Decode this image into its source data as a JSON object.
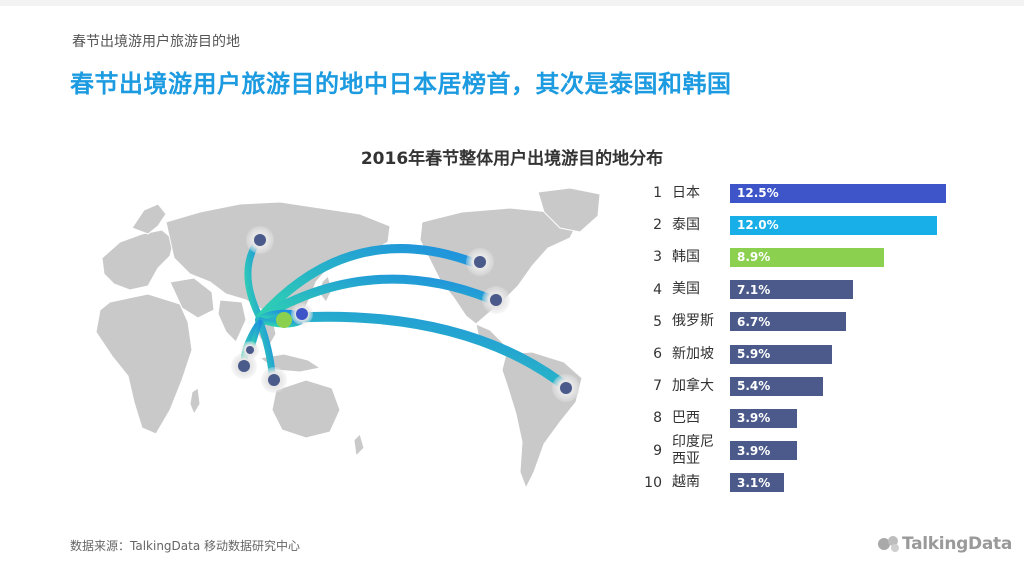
{
  "section_label": "春节出境游用户旅游目的地",
  "headline": "春节出境游用户旅游目的地中日本居榜首，其次是泰国和韩国",
  "chart_title": "2016年春节整体用户出境游目的地分布",
  "source": "数据来源：TalkingData 移动数据研究中心",
  "logo_text": "TalkingData",
  "logo_icon": "talkingdata-logo-icon",
  "chart_data": {
    "type": "bar",
    "orientation": "horizontal",
    "title": "2016年春节整体用户出境游目的地分布",
    "categories": [
      "日本",
      "泰国",
      "韩国",
      "美国",
      "俄罗斯",
      "新加坡",
      "加拿大",
      "巴西",
      "印度尼西亚",
      "越南"
    ],
    "ranks": [
      "1",
      "2",
      "3",
      "4",
      "5",
      "6",
      "7",
      "8",
      "9",
      "10"
    ],
    "values": [
      12.5,
      12.0,
      8.9,
      7.1,
      6.7,
      5.9,
      5.4,
      3.9,
      3.9,
      3.1
    ],
    "labels": [
      "12.5%",
      "12.0%",
      "8.9%",
      "7.1%",
      "6.7%",
      "5.9%",
      "5.4%",
      "3.9%",
      "3.9%",
      "3.1%"
    ],
    "colors": [
      "#3d55c8",
      "#18aee8",
      "#8cd04f",
      "#4b5a8a",
      "#4b5a8a",
      "#4b5a8a",
      "#4b5a8a",
      "#4b5a8a",
      "#4b5a8a",
      "#4b5a8a"
    ],
    "xlim": [
      0,
      12.5
    ],
    "grid": false,
    "legend": "none"
  },
  "map": {
    "land_color": "#c9c9c9",
    "arrow_color_start": "#2fd4b0",
    "arrow_color_end": "#1f8fe0",
    "marker_color": "#4a5a8a",
    "origin": "china"
  }
}
